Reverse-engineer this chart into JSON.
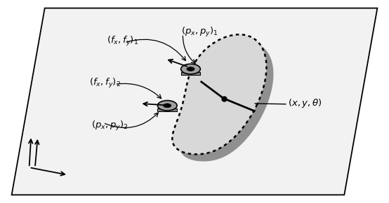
{
  "bg_color": "#ffffff",
  "fig_color": "#f0f0f0",
  "object_fill": "#d8d8d8",
  "shadow_fill": "#909090",
  "contact_fill": "#a0a0a0",
  "fontsize": 9.5
}
